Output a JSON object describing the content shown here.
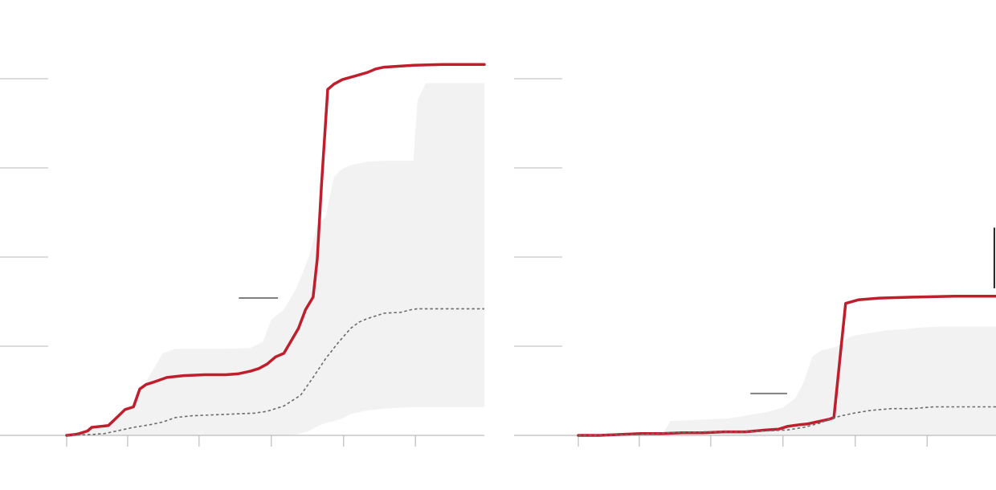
{
  "colors": {
    "line": "#bf1e2d",
    "band": "#f2f2f2",
    "median": "#6b6b6b",
    "grid": "#c8c8c8",
    "axis": "#bdbdbd",
    "marker": "#808080",
    "annotation_tick": "#222222"
  },
  "chart_data": [
    {
      "type": "line",
      "title": "",
      "xlabel": "",
      "ylabel": "",
      "x_tick_labels": [],
      "y_tick_labels": [],
      "grid": "horizontal",
      "legend": "none",
      "xlim": [
        0,
        1.0
      ],
      "ylim": [
        0,
        4.0
      ],
      "x_ticks": [
        0,
        0.146,
        0.317,
        0.49,
        0.663,
        0.835
      ],
      "y_gridlines": [
        1,
        2,
        3,
        4
      ],
      "marker_line": {
        "x": [
          0.412,
          0.506
        ],
        "y": 1.54
      },
      "band": {
        "x": [
          0,
          0.04,
          0.09,
          0.15,
          0.2,
          0.23,
          0.26,
          0.3,
          0.38,
          0.44,
          0.47,
          0.49,
          0.52,
          0.55,
          0.58,
          0.6,
          0.62,
          0.64,
          0.66,
          0.68,
          0.72,
          0.76,
          0.8,
          0.83,
          0.84,
          0.86,
          1.0
        ],
        "lower": [
          0,
          0,
          0,
          0,
          0,
          0,
          0,
          0,
          0,
          0,
          0,
          0,
          0,
          0.01,
          0.05,
          0.1,
          0.14,
          0.16,
          0.19,
          0.24,
          0.28,
          0.3,
          0.31,
          0.32,
          0.32,
          0.32,
          0.32
        ],
        "upper": [
          0.01,
          0.05,
          0.12,
          0.28,
          0.68,
          0.92,
          0.97,
          0.97,
          0.97,
          0.98,
          1.05,
          1.3,
          1.41,
          1.65,
          2.0,
          2.36,
          2.45,
          2.9,
          2.99,
          3.03,
          3.07,
          3.08,
          3.08,
          3.08,
          3.76,
          3.95,
          3.95
        ]
      },
      "series": [
        {
          "role": "observed",
          "x": [
            0,
            0.02,
            0.03,
            0.05,
            0.06,
            0.1,
            0.12,
            0.14,
            0.16,
            0.175,
            0.19,
            0.21,
            0.24,
            0.28,
            0.33,
            0.38,
            0.41,
            0.44,
            0.46,
            0.48,
            0.5,
            0.52,
            0.54,
            0.555,
            0.572,
            0.59,
            0.6,
            0.61,
            0.625,
            0.64,
            0.66,
            0.69,
            0.72,
            0.74,
            0.76,
            0.83,
            0.9,
            1.0
          ],
          "y": [
            0,
            0.01,
            0.02,
            0.05,
            0.09,
            0.11,
            0.2,
            0.29,
            0.32,
            0.52,
            0.57,
            0.6,
            0.65,
            0.67,
            0.68,
            0.68,
            0.69,
            0.72,
            0.75,
            0.8,
            0.88,
            0.92,
            1.08,
            1.2,
            1.41,
            1.55,
            1.98,
            2.8,
            3.88,
            3.94,
            3.99,
            4.03,
            4.07,
            4.11,
            4.13,
            4.15,
            4.16,
            4.16
          ]
        },
        {
          "role": "median",
          "x": [
            0,
            0.06,
            0.09,
            0.12,
            0.16,
            0.2,
            0.23,
            0.26,
            0.3,
            0.35,
            0.4,
            0.45,
            0.48,
            0.52,
            0.56,
            0.59,
            0.62,
            0.65,
            0.68,
            0.7,
            0.72,
            0.74,
            0.76,
            0.8,
            0.825,
            0.84,
            1.0
          ],
          "y": [
            0,
            0.01,
            0.02,
            0.05,
            0.09,
            0.12,
            0.15,
            0.2,
            0.22,
            0.23,
            0.24,
            0.25,
            0.27,
            0.33,
            0.45,
            0.65,
            0.86,
            1.04,
            1.2,
            1.27,
            1.31,
            1.34,
            1.37,
            1.38,
            1.41,
            1.42,
            1.42
          ]
        }
      ]
    },
    {
      "type": "line",
      "title": "",
      "xlabel": "",
      "ylabel": "",
      "x_tick_labels": [],
      "y_tick_labels": [],
      "grid": "horizontal",
      "legend": "none",
      "xlim": [
        0,
        1.0
      ],
      "ylim": [
        0,
        4.0
      ],
      "x_ticks": [
        0,
        0.146,
        0.317,
        0.49,
        0.663,
        0.835
      ],
      "y_gridlines": [
        1,
        2,
        3,
        4
      ],
      "marker_line": {
        "x": [
          0.412,
          0.5
        ],
        "y": 0.47
      },
      "annotation_tick": {
        "x": 0.996,
        "y": [
          1.65,
          2.33
        ]
      },
      "band": {
        "x": [
          0,
          0.2,
          0.22,
          0.36,
          0.45,
          0.49,
          0.52,
          0.54,
          0.56,
          0.58,
          0.6,
          0.62,
          0.64,
          0.66,
          0.7,
          0.74,
          0.78,
          0.82,
          0.86,
          0.9,
          1.0
        ],
        "lower": [
          0,
          0,
          0,
          0,
          0,
          0,
          0,
          0,
          0,
          0,
          0,
          0,
          0,
          0,
          0,
          0,
          0,
          0,
          0,
          0,
          0
        ],
        "upper": [
          0,
          0,
          0.16,
          0.19,
          0.26,
          0.31,
          0.42,
          0.6,
          0.88,
          0.95,
          0.97,
          1.0,
          1.08,
          1.12,
          1.15,
          1.18,
          1.19,
          1.21,
          1.22,
          1.22,
          1.22
        ]
      },
      "series": [
        {
          "role": "observed",
          "x": [
            0,
            0.05,
            0.1,
            0.15,
            0.2,
            0.25,
            0.3,
            0.35,
            0.4,
            0.45,
            0.48,
            0.5,
            0.53,
            0.55,
            0.58,
            0.6,
            0.612,
            0.625,
            0.64,
            0.67,
            0.72,
            0.8,
            0.9,
            1.0
          ],
          "y": [
            0,
            0,
            0.01,
            0.02,
            0.02,
            0.03,
            0.03,
            0.04,
            0.04,
            0.06,
            0.07,
            0.1,
            0.12,
            0.13,
            0.16,
            0.18,
            0.2,
            0.8,
            1.48,
            1.52,
            1.54,
            1.55,
            1.56,
            1.56
          ]
        },
        {
          "role": "median",
          "x": [
            0,
            0.15,
            0.22,
            0.3,
            0.4,
            0.45,
            0.5,
            0.54,
            0.58,
            0.6,
            0.63,
            0.66,
            0.7,
            0.75,
            0.8,
            0.85,
            0.9,
            1.0
          ],
          "y": [
            0,
            0.01,
            0.03,
            0.04,
            0.04,
            0.05,
            0.06,
            0.09,
            0.14,
            0.18,
            0.22,
            0.25,
            0.28,
            0.3,
            0.3,
            0.32,
            0.32,
            0.32
          ]
        }
      ]
    }
  ]
}
